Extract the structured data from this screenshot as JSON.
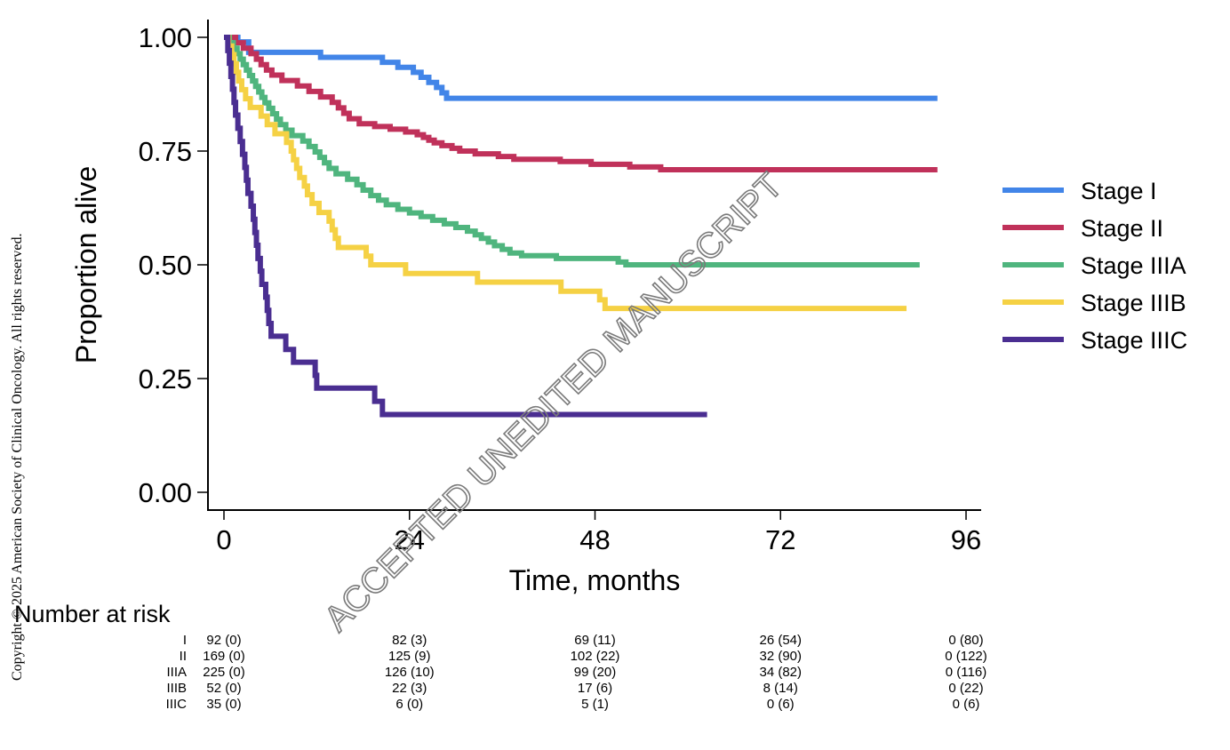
{
  "copyright": "Copyright © 2025 American Society of Clinical Oncology. All rights reserved.",
  "watermark": "ACCEPTED UNEDITED MANUSCRIPT",
  "chart_data": {
    "type": "line",
    "subtype": "kaplan-meier step",
    "title": "",
    "xlabel": "Time, months",
    "ylabel": "Proportion alive",
    "xlim": [
      0,
      96
    ],
    "ylim": [
      0,
      1
    ],
    "xticks": [
      0,
      24,
      48,
      72,
      96
    ],
    "yticks": [
      "0.00",
      "0.25",
      "0.50",
      "0.75",
      "1.00"
    ],
    "grid": false,
    "legend_position": "right",
    "series": [
      {
        "name": "Stage I",
        "color": "#4285E8",
        "points": [
          [
            0,
            1.0
          ],
          [
            1.8,
            0.99
          ],
          [
            3.2,
            0.967
          ],
          [
            12.5,
            0.956
          ],
          [
            20.5,
            0.945
          ],
          [
            22.5,
            0.934
          ],
          [
            24.5,
            0.923
          ],
          [
            25.5,
            0.912
          ],
          [
            26.5,
            0.901
          ],
          [
            27.5,
            0.89
          ],
          [
            28.2,
            0.878
          ],
          [
            28.8,
            0.866
          ],
          [
            92.3,
            0.866
          ]
        ]
      },
      {
        "name": "Stage II",
        "color": "#C0315A",
        "points": [
          [
            0,
            1.0
          ],
          [
            1.5,
            0.988
          ],
          [
            2.5,
            0.976
          ],
          [
            3.5,
            0.964
          ],
          [
            4.2,
            0.952
          ],
          [
            4.8,
            0.94
          ],
          [
            5.5,
            0.928
          ],
          [
            6.2,
            0.917
          ],
          [
            7.5,
            0.905
          ],
          [
            9.5,
            0.893
          ],
          [
            11.0,
            0.881
          ],
          [
            12.5,
            0.869
          ],
          [
            14.0,
            0.857
          ],
          [
            14.8,
            0.845
          ],
          [
            15.5,
            0.833
          ],
          [
            16.2,
            0.821
          ],
          [
            17.5,
            0.81
          ],
          [
            19.5,
            0.804
          ],
          [
            21.5,
            0.798
          ],
          [
            23.5,
            0.792
          ],
          [
            25.0,
            0.786
          ],
          [
            25.8,
            0.78
          ],
          [
            26.5,
            0.774
          ],
          [
            27.2,
            0.768
          ],
          [
            28.2,
            0.762
          ],
          [
            29.5,
            0.756
          ],
          [
            30.5,
            0.75
          ],
          [
            32.5,
            0.744
          ],
          [
            35.5,
            0.738
          ],
          [
            37.5,
            0.732
          ],
          [
            43.5,
            0.727
          ],
          [
            47.5,
            0.721
          ],
          [
            52.5,
            0.715
          ],
          [
            56.5,
            0.709
          ],
          [
            92.3,
            0.709
          ]
        ]
      },
      {
        "name": "Stage IIIA",
        "color": "#4FB57E",
        "points": [
          [
            0,
            1.0
          ],
          [
            0.7,
            0.988
          ],
          [
            1.2,
            0.976
          ],
          [
            1.7,
            0.964
          ],
          [
            2.1,
            0.952
          ],
          [
            2.5,
            0.94
          ],
          [
            2.9,
            0.928
          ],
          [
            3.3,
            0.916
          ],
          [
            3.7,
            0.904
          ],
          [
            4.1,
            0.892
          ],
          [
            4.5,
            0.88
          ],
          [
            4.9,
            0.868
          ],
          [
            5.3,
            0.856
          ],
          [
            5.8,
            0.844
          ],
          [
            6.3,
            0.832
          ],
          [
            6.8,
            0.82
          ],
          [
            7.3,
            0.808
          ],
          [
            8.0,
            0.796
          ],
          [
            8.8,
            0.784
          ],
          [
            10.2,
            0.772
          ],
          [
            11.0,
            0.76
          ],
          [
            11.8,
            0.748
          ],
          [
            12.4,
            0.736
          ],
          [
            13.0,
            0.724
          ],
          [
            13.6,
            0.712
          ],
          [
            14.5,
            0.7
          ],
          [
            16.0,
            0.688
          ],
          [
            17.2,
            0.676
          ],
          [
            18.0,
            0.664
          ],
          [
            19.0,
            0.652
          ],
          [
            20.0,
            0.642
          ],
          [
            21.0,
            0.632
          ],
          [
            22.5,
            0.622
          ],
          [
            24.0,
            0.614
          ],
          [
            25.5,
            0.606
          ],
          [
            27.0,
            0.598
          ],
          [
            28.5,
            0.59
          ],
          [
            30.0,
            0.582
          ],
          [
            31.5,
            0.574
          ],
          [
            32.5,
            0.566
          ],
          [
            33.3,
            0.558
          ],
          [
            34.2,
            0.55
          ],
          [
            35.0,
            0.542
          ],
          [
            36.0,
            0.534
          ],
          [
            37.0,
            0.526
          ],
          [
            38.5,
            0.52
          ],
          [
            43.0,
            0.514
          ],
          [
            51.0,
            0.506
          ],
          [
            52.0,
            0.5
          ],
          [
            90.0,
            0.5
          ]
        ]
      },
      {
        "name": "Stage IIIB",
        "color": "#F5D144",
        "points": [
          [
            0,
            1.0
          ],
          [
            0.6,
            0.981
          ],
          [
            1.0,
            0.962
          ],
          [
            1.3,
            0.942
          ],
          [
            1.6,
            0.923
          ],
          [
            1.9,
            0.904
          ],
          [
            2.3,
            0.885
          ],
          [
            2.8,
            0.865
          ],
          [
            3.4,
            0.846
          ],
          [
            4.8,
            0.827
          ],
          [
            5.6,
            0.808
          ],
          [
            6.6,
            0.788
          ],
          [
            8.1,
            0.769
          ],
          [
            8.7,
            0.75
          ],
          [
            9.0,
            0.731
          ],
          [
            9.4,
            0.712
          ],
          [
            9.8,
            0.692
          ],
          [
            10.4,
            0.673
          ],
          [
            10.8,
            0.654
          ],
          [
            11.4,
            0.635
          ],
          [
            12.3,
            0.615
          ],
          [
            13.6,
            0.596
          ],
          [
            14.0,
            0.577
          ],
          [
            14.4,
            0.558
          ],
          [
            14.8,
            0.538
          ],
          [
            18.4,
            0.519
          ],
          [
            19.0,
            0.5
          ],
          [
            23.5,
            0.481
          ],
          [
            32.8,
            0.462
          ],
          [
            43.6,
            0.442
          ],
          [
            48.6,
            0.423
          ],
          [
            49.3,
            0.404
          ],
          [
            88.3,
            0.404
          ]
        ]
      },
      {
        "name": "Stage IIIC",
        "color": "#4A2E91",
        "points": [
          [
            0,
            1.0
          ],
          [
            0.5,
            0.971
          ],
          [
            0.7,
            0.943
          ],
          [
            0.9,
            0.914
          ],
          [
            1.1,
            0.886
          ],
          [
            1.3,
            0.857
          ],
          [
            1.5,
            0.829
          ],
          [
            1.8,
            0.8
          ],
          [
            2.1,
            0.771
          ],
          [
            2.4,
            0.743
          ],
          [
            2.7,
            0.714
          ],
          [
            2.9,
            0.686
          ],
          [
            3.1,
            0.657
          ],
          [
            3.5,
            0.629
          ],
          [
            3.8,
            0.6
          ],
          [
            4.0,
            0.571
          ],
          [
            4.2,
            0.543
          ],
          [
            4.4,
            0.514
          ],
          [
            4.7,
            0.486
          ],
          [
            4.9,
            0.457
          ],
          [
            5.4,
            0.429
          ],
          [
            5.6,
            0.4
          ],
          [
            5.8,
            0.371
          ],
          [
            6.1,
            0.343
          ],
          [
            8.0,
            0.314
          ],
          [
            9.0,
            0.286
          ],
          [
            11.8,
            0.257
          ],
          [
            12.0,
            0.229
          ],
          [
            19.5,
            0.2
          ],
          [
            20.5,
            0.171
          ],
          [
            62.5,
            0.171
          ]
        ]
      }
    ],
    "number_at_risk": {
      "title": "Number at risk",
      "times": [
        0,
        24,
        48,
        72,
        96
      ],
      "rows": [
        {
          "label": "I",
          "values": [
            "92 (0)",
            "82 (3)",
            "69 (11)",
            "26 (54)",
            "0 (80)"
          ]
        },
        {
          "label": "II",
          "values": [
            "169 (0)",
            "125 (9)",
            "102 (22)",
            "32 (90)",
            "0 (122)"
          ]
        },
        {
          "label": "IIIA",
          "values": [
            "225 (0)",
            "126 (10)",
            "99 (20)",
            "34 (82)",
            "0 (116)"
          ]
        },
        {
          "label": "IIIB",
          "values": [
            "52 (0)",
            "22 (3)",
            "17 (6)",
            "8 (14)",
            "0 (22)"
          ]
        },
        {
          "label": "IIIC",
          "values": [
            "35 (0)",
            "6 (0)",
            "5 (1)",
            "0 (6)",
            "0 (6)"
          ]
        }
      ]
    }
  }
}
